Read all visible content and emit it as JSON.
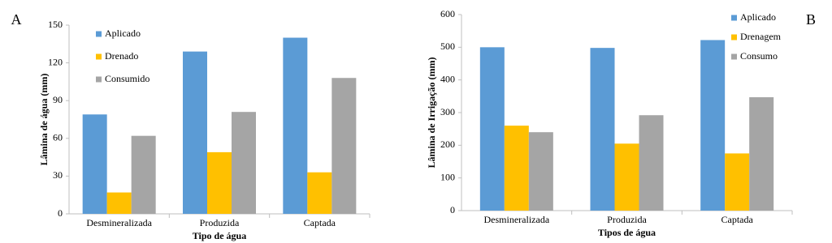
{
  "chart_data": [
    {
      "type": "bar",
      "label": "A",
      "y_label": "Lâmina de água (mm)",
      "x_label": "Tipo de água",
      "categories": [
        "Desmineralizada",
        "Produzida",
        "Captada"
      ],
      "series": [
        {
          "name": "Aplicado",
          "color": "#5b9bd5",
          "values": [
            79,
            129,
            140
          ]
        },
        {
          "name": "Drenado",
          "color": "#ffc000",
          "values": [
            17,
            49,
            33
          ]
        },
        {
          "name": "Consumido",
          "color": "#a5a5a5",
          "values": [
            62,
            81,
            108
          ]
        }
      ],
      "ylim": [
        0,
        150
      ],
      "yticks": [
        0,
        30,
        60,
        90,
        120,
        150
      ],
      "grid": false
    },
    {
      "type": "bar",
      "label": "B",
      "y_label": "Lâmina de Irrigação (mm)",
      "x_label": "Tipos de água",
      "categories": [
        "Desmineralizada",
        "Produzida",
        "Captada"
      ],
      "series": [
        {
          "name": "Aplicado",
          "color": "#5b9bd5",
          "values": [
            500,
            498,
            522
          ]
        },
        {
          "name": "Drenagem",
          "color": "#ffc000",
          "values": [
            260,
            205,
            175
          ]
        },
        {
          "name": "Consumo",
          "color": "#a5a5a5",
          "values": [
            240,
            292,
            347
          ]
        }
      ],
      "ylim": [
        0,
        600
      ],
      "yticks": [
        0,
        100,
        200,
        300,
        400,
        500,
        600
      ],
      "grid": false
    }
  ]
}
